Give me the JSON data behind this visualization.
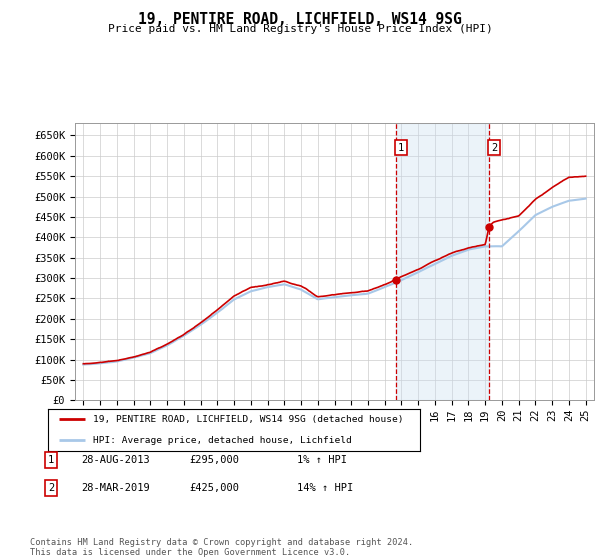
{
  "title": "19, PENTIRE ROAD, LICHFIELD, WS14 9SG",
  "subtitle": "Price paid vs. HM Land Registry's House Price Index (HPI)",
  "ylabel_ticks": [
    "£0",
    "£50K",
    "£100K",
    "£150K",
    "£200K",
    "£250K",
    "£300K",
    "£350K",
    "£400K",
    "£450K",
    "£500K",
    "£550K",
    "£600K",
    "£650K"
  ],
  "ytick_values": [
    0,
    50000,
    100000,
    150000,
    200000,
    250000,
    300000,
    350000,
    400000,
    450000,
    500000,
    550000,
    600000,
    650000
  ],
  "ylim": [
    0,
    680000
  ],
  "xlim_start": 1994.5,
  "xlim_end": 2025.5,
  "sale1_date": 2013.66,
  "sale1_price": 295000,
  "sale2_date": 2019.24,
  "sale2_price": 425000,
  "hpi_line_color": "#a8c8e8",
  "price_line_color": "#cc0000",
  "sale_dot_color": "#cc0000",
  "annotation_box_color": "#cc0000",
  "shading_color": "#c8ddf0",
  "footer_text": "Contains HM Land Registry data © Crown copyright and database right 2024.\nThis data is licensed under the Open Government Licence v3.0.",
  "legend_label1": "19, PENTIRE ROAD, LICHFIELD, WS14 9SG (detached house)",
  "legend_label2": "HPI: Average price, detached house, Lichfield",
  "table_row1": [
    "1",
    "28-AUG-2013",
    "£295,000",
    "1% ↑ HPI"
  ],
  "table_row2": [
    "2",
    "28-MAR-2019",
    "£425,000",
    "14% ↑ HPI"
  ],
  "background_color": "#ffffff",
  "grid_color": "#cccccc",
  "plot_bg_color": "#ffffff",
  "key_years_hpi": [
    1995,
    1996,
    1997,
    1998,
    1999,
    2000,
    2001,
    2002,
    2003,
    2004,
    2005,
    2006,
    2007,
    2008,
    2009,
    2010,
    2011,
    2012,
    2013,
    2014,
    2015,
    2016,
    2017,
    2018,
    2019,
    2020,
    2021,
    2022,
    2023,
    2024,
    2025
  ],
  "key_vals_hpi": [
    88000,
    91000,
    96000,
    105000,
    116000,
    135000,
    158000,
    185000,
    215000,
    248000,
    268000,
    278000,
    285000,
    272000,
    248000,
    253000,
    258000,
    262000,
    278000,
    295000,
    315000,
    335000,
    355000,
    370000,
    378000,
    378000,
    415000,
    455000,
    475000,
    490000,
    495000
  ],
  "key_years_red": [
    1995,
    1996,
    1997,
    1998,
    1999,
    2000,
    2001,
    2002,
    2003,
    2004,
    2005,
    2006,
    2007,
    2008,
    2009,
    2010,
    2011,
    2012,
    2013,
    2013.66,
    2014,
    2015,
    2016,
    2017,
    2018,
    2019,
    2019.24,
    2019.5,
    2020,
    2021,
    2022,
    2023,
    2024,
    2025
  ],
  "key_vals_red": [
    90000,
    93000,
    98000,
    108000,
    120000,
    140000,
    163000,
    192000,
    222000,
    255000,
    275000,
    282000,
    290000,
    278000,
    252000,
    258000,
    263000,
    268000,
    283000,
    295000,
    302000,
    318000,
    340000,
    358000,
    372000,
    380000,
    425000,
    435000,
    440000,
    450000,
    490000,
    520000,
    545000,
    550000
  ]
}
